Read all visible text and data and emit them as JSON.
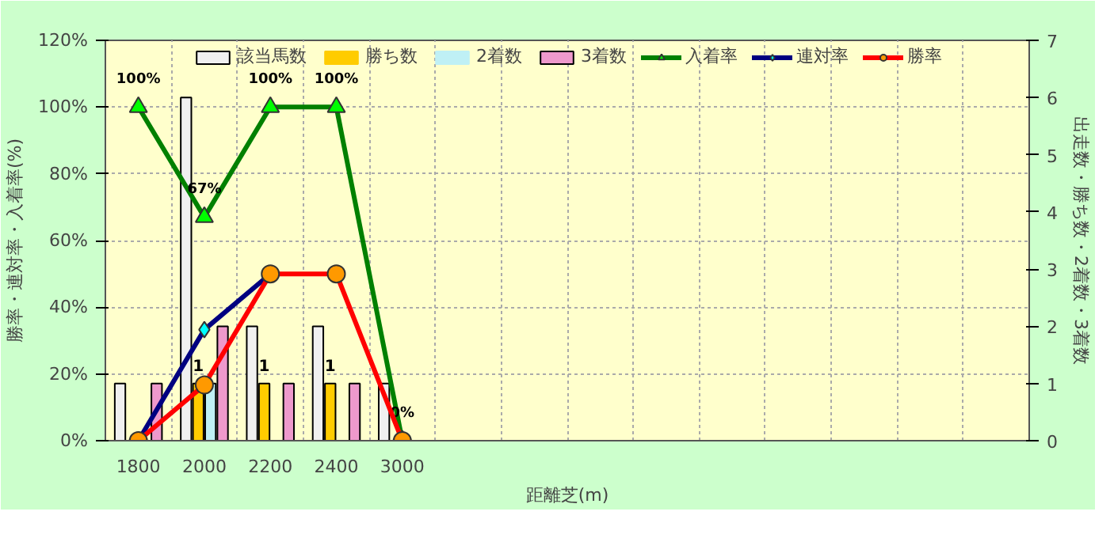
{
  "chart_data": {
    "type": "bar",
    "xlabel": "距離芝(m)",
    "ylabel": "勝率・連対率・入着率(%)",
    "y2label": "出走数・勝ち数・2着数・3着数",
    "categories": [
      "1800",
      "2000",
      "2200",
      "2400",
      "3000",
      null,
      null,
      null,
      null,
      null,
      null,
      null,
      null,
      null
    ],
    "ylim": [
      0,
      120
    ],
    "yticks": [
      {
        "value": 0,
        "label": "0%"
      },
      {
        "value": 20,
        "label": "20%"
      },
      {
        "value": 40,
        "label": "40%"
      },
      {
        "value": 60,
        "label": "60%"
      },
      {
        "value": 80,
        "label": "80%"
      },
      {
        "value": 100,
        "label": "100%"
      },
      {
        "value": 120,
        "label": "120%"
      }
    ],
    "y2lim": [
      0,
      7
    ],
    "y2ticks": [
      0,
      1,
      2,
      3,
      4,
      5,
      6,
      7
    ],
    "grid": true,
    "legend": "top",
    "series": [
      {
        "name": "該当馬数",
        "axis": "y2",
        "color": "#f0f0f0",
        "values": [
          1,
          6,
          2,
          2,
          1,
          null,
          null,
          null,
          null,
          null,
          null,
          null,
          null,
          null
        ]
      },
      {
        "name": "勝ち数",
        "axis": "y2",
        "color": "#ffcc00",
        "values": [
          0,
          1,
          1,
          1,
          0,
          null,
          null,
          null,
          null,
          null,
          null,
          null,
          null,
          null
        ],
        "value_labels": [
          null,
          "1",
          "1",
          "1",
          null,
          null,
          null,
          null,
          null,
          null,
          null,
          null,
          null,
          null
        ]
      },
      {
        "name": "2着数",
        "axis": "y2",
        "color": "#bff0f5",
        "values": [
          0,
          1,
          0,
          0,
          0,
          null,
          null,
          null,
          null,
          null,
          null,
          null,
          null,
          null
        ]
      },
      {
        "name": "3着数",
        "axis": "y2",
        "color": "#ee99cc",
        "values": [
          1,
          2,
          1,
          1,
          0,
          null,
          null,
          null,
          null,
          null,
          null,
          null,
          null,
          null
        ]
      },
      {
        "name": "入着率",
        "type": "line",
        "color": "#008000",
        "marker": "triangle",
        "colors": [
          "#00ff00",
          "#00ff00",
          "#00ff00",
          "#00ff00",
          "#00ff00",
          null,
          null,
          null,
          null,
          null,
          null,
          null,
          null,
          null
        ],
        "values": [
          100,
          67,
          100,
          100,
          0,
          null,
          null,
          null,
          null,
          null,
          null,
          null,
          null,
          null
        ],
        "value_labels": [
          "100%",
          "67%",
          "100%",
          "100%",
          "0%",
          null,
          null,
          null,
          null,
          null,
          null,
          null,
          null,
          null
        ]
      },
      {
        "name": "連対率",
        "type": "line",
        "color": "#000080",
        "marker": "diamond",
        "colors": [
          "#00ffff",
          "#00ffff",
          "#00ffff",
          null,
          null,
          null,
          null,
          null,
          null,
          null,
          null,
          null,
          null,
          null
        ],
        "values": [
          0,
          33.3,
          50,
          null,
          null,
          null,
          null,
          null,
          null,
          null,
          null,
          null,
          null,
          null
        ]
      },
      {
        "name": "勝率",
        "type": "line",
        "color": "#ff0000",
        "marker": "circle",
        "colors": [
          "#ff9900",
          "#ff9900",
          "#ff9900",
          "#ff9900",
          "#ff9900",
          null,
          null,
          null,
          null,
          null,
          null,
          null,
          null,
          null
        ],
        "values": [
          0,
          16.7,
          50,
          50,
          0,
          null,
          null,
          null,
          null,
          null,
          null,
          null,
          null,
          null
        ]
      }
    ]
  }
}
